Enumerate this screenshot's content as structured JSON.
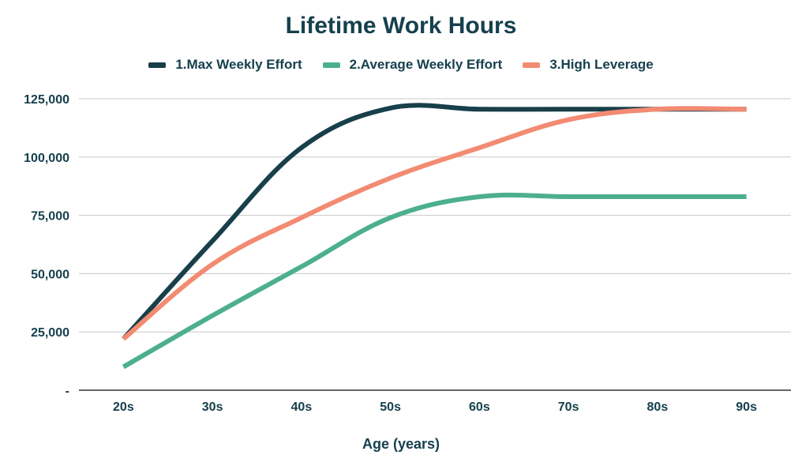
{
  "chart_data": {
    "type": "line",
    "title": "Lifetime Work Hours",
    "xlabel": "Age (years)",
    "ylabel": "",
    "categories": [
      "20s",
      "30s",
      "40s",
      "50s",
      "60s",
      "70s",
      "80s",
      "90s"
    ],
    "ylim": [
      0,
      125000
    ],
    "yticks": [
      0,
      25000,
      50000,
      75000,
      100000,
      125000
    ],
    "ytick_labels": [
      "-",
      "25,000",
      "50,000",
      "75,000",
      "100,000",
      "125,000"
    ],
    "grid": true,
    "legend_position": "top",
    "series": [
      {
        "name": "1.Max Weekly Effort",
        "color": "#183f4a",
        "values": [
          22000,
          64000,
          104000,
          121000,
          120500,
          120500,
          120500,
          120500
        ]
      },
      {
        "name": "2.Average Weekly Effort",
        "color": "#4caf8f",
        "values": [
          10000,
          32000,
          53000,
          74000,
          83000,
          83000,
          83000,
          83000
        ]
      },
      {
        "name": "3.High Leverage",
        "color": "#f28b72",
        "values": [
          22000,
          54000,
          74000,
          91000,
          104000,
          116000,
          120500,
          120500
        ]
      }
    ]
  }
}
